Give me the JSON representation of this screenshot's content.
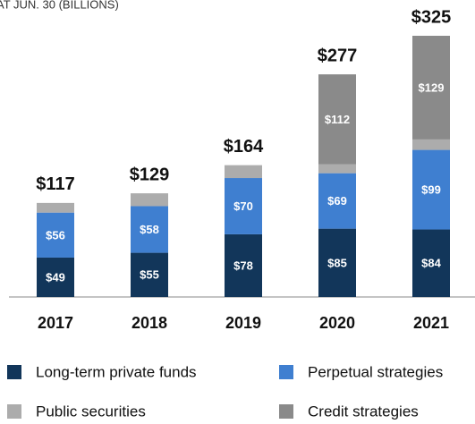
{
  "chart_data": {
    "type": "stacked_bar",
    "subtitle": "AT JUN. 30 (BILLIONS)",
    "categories": [
      "2017",
      "2018",
      "2019",
      "2020",
      "2021"
    ],
    "series": [
      {
        "name": "Long-term private funds",
        "color": "#12365a",
        "values": [
          49,
          55,
          78,
          85,
          84
        ],
        "value_labels": [
          "$49",
          "$55",
          "$78",
          "$85",
          "$84"
        ]
      },
      {
        "name": "Perpetual strategies",
        "color": "#3f7fd0",
        "values": [
          56,
          58,
          70,
          69,
          99
        ],
        "value_labels": [
          "$56",
          "$58",
          "$70",
          "$69",
          "$99"
        ]
      },
      {
        "name": "Public securities",
        "color": "#acacac",
        "values": [
          12,
          16,
          16,
          11,
          13
        ]
      },
      {
        "name": "Credit strategies",
        "color": "#8a8a8a",
        "values": [
          null,
          null,
          null,
          112,
          129
        ],
        "value_labels": [
          null,
          null,
          null,
          "$112",
          "$129"
        ]
      }
    ],
    "totals": [
      117,
      129,
      164,
      277,
      325
    ],
    "total_labels": [
      "$117",
      "$129",
      "$164",
      "$277",
      "$325"
    ]
  }
}
